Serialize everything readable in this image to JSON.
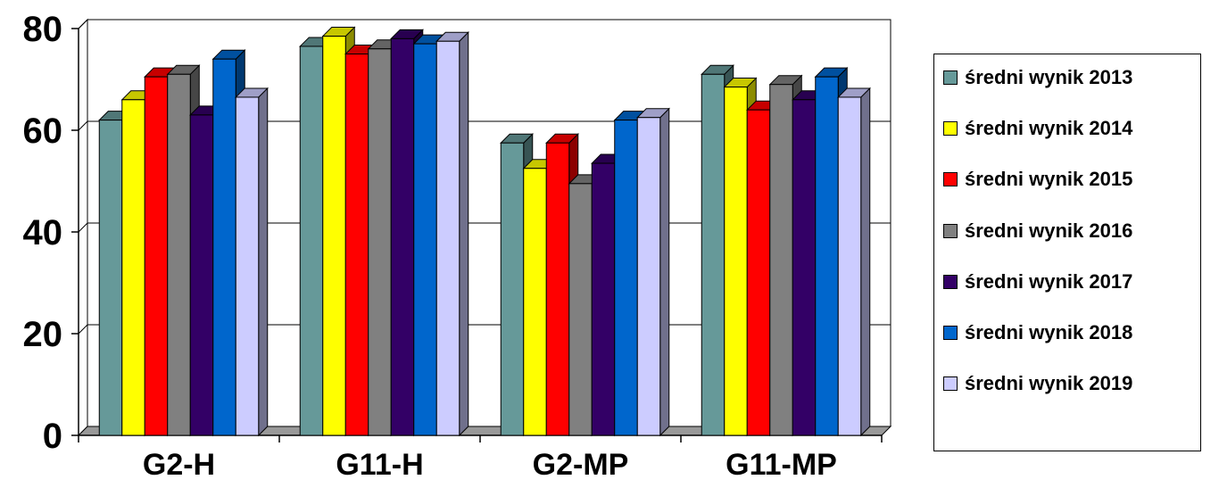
{
  "chart_data": {
    "type": "bar",
    "title": "",
    "xlabel": "",
    "ylabel": "",
    "ylim": [
      0,
      80
    ],
    "yticks": [
      "0",
      "20",
      "40",
      "60",
      "80"
    ],
    "grid": "horizontal",
    "legend_position": "right",
    "style": "3d-clustered",
    "categories": [
      "G2-H",
      "G11-H",
      "G2-MP",
      "G11-MP"
    ],
    "series": [
      {
        "name": "średni wynik 2013",
        "color": "#669999",
        "values": [
          62,
          76.5,
          57.5,
          71
        ]
      },
      {
        "name": "średni wynik 2014",
        "color": "#ffff00",
        "values": [
          66,
          78.5,
          52.5,
          68.5
        ]
      },
      {
        "name": "średni wynik 2015",
        "color": "#ff0000",
        "values": [
          70.5,
          75,
          57.5,
          64
        ]
      },
      {
        "name": "średni wynik 2016",
        "color": "#808080",
        "values": [
          71,
          76,
          49.5,
          69
        ]
      },
      {
        "name": "średni wynik 2017",
        "color": "#330066",
        "values": [
          63,
          78,
          53.5,
          66
        ]
      },
      {
        "name": "średni wynik 2018",
        "color": "#0066cc",
        "values": [
          74,
          77,
          62,
          70.5
        ]
      },
      {
        "name": "średni wynik 2019",
        "color": "#ccccff",
        "values": [
          66.5,
          77.5,
          62.5,
          66.5
        ]
      }
    ]
  }
}
